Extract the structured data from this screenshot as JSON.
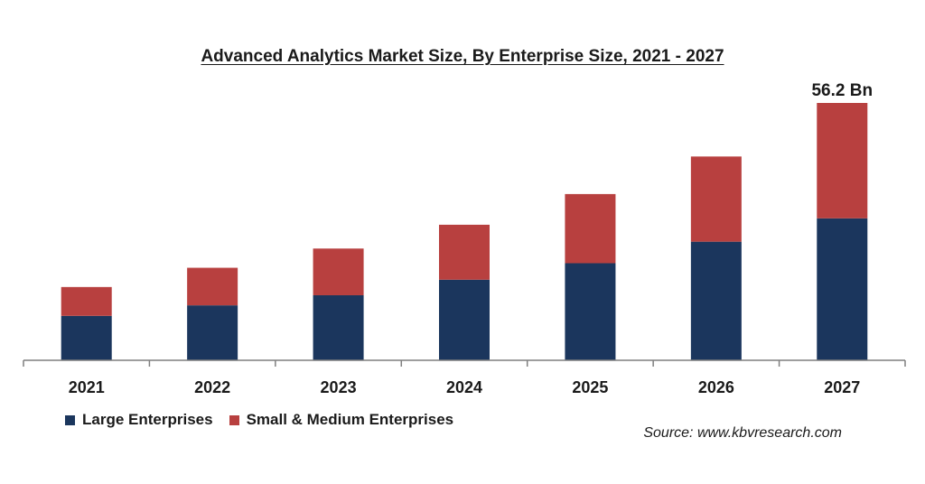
{
  "chart_data": {
    "type": "bar",
    "stacked": true,
    "title": "Advanced Analytics Market Size, By Enterprise Size, 2021 - 2027",
    "categories": [
      "2021",
      "2022",
      "2023",
      "2024",
      "2025",
      "2026",
      "2027"
    ],
    "series": [
      {
        "name": "Large Enterprises",
        "color": "#1b365d",
        "values": [
          9.7,
          12.0,
          14.2,
          17.6,
          21.2,
          25.9,
          31.0
        ]
      },
      {
        "name": "Small & Medium Enterprises",
        "color": "#b8403f",
        "values": [
          6.3,
          8.2,
          10.2,
          12.0,
          15.1,
          18.6,
          25.2
        ]
      }
    ],
    "ylim": [
      0,
      56.2
    ],
    "annotations": [
      {
        "category": "2027",
        "label": "56.2 Bn"
      }
    ],
    "grid": false,
    "legend_position": "bottom-left"
  },
  "source": "Source: www.kbvresearch.com"
}
